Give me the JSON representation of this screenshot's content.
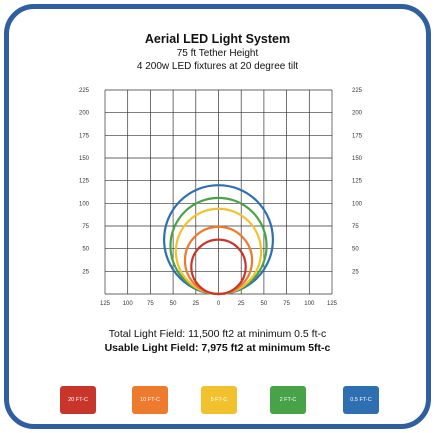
{
  "header": {
    "title": "Aerial LED Light System",
    "subtitle_height": "75 ft Tether Height",
    "subtitle_fixtures": "4 200w LED fixtures at 20 degree tilt"
  },
  "chart_data": {
    "type": "diagram",
    "grid": true,
    "x_ticks": [
      "125",
      "100",
      "75",
      "50",
      "25",
      "0",
      "25",
      "50",
      "75",
      "100",
      "125"
    ],
    "y_ticks": [
      "225",
      "200",
      "175",
      "150",
      "125",
      "100",
      "75",
      "50",
      "25"
    ],
    "x_range": [
      -125,
      125
    ],
    "y_range": [
      0,
      225
    ],
    "contours": [
      {
        "label": "0.5 FT-C",
        "color": "#2e6fb2",
        "radius": 60,
        "center_y": 60
      },
      {
        "label": "2 FT-C",
        "color": "#48a248",
        "radius": 53,
        "center_y": 53
      },
      {
        "label": "5 FT-C",
        "color": "#f2c12e",
        "radius": 47,
        "center_y": 47
      },
      {
        "label": "10 FT-C",
        "color": "#ee7a2e",
        "radius": 37,
        "center_y": 37
      },
      {
        "label": "20 FT-C",
        "color": "#c8362b",
        "radius": 30,
        "center_y": 30
      }
    ]
  },
  "summary": {
    "total": "Total Light Field: 11,500 ft2 at minimum 0.5 ft-c",
    "usable": "Usable Light Field: 7,975 ft2 at minimum 5ft-c"
  },
  "legend": [
    {
      "label": "20 FT-C",
      "color": "#c8362b"
    },
    {
      "label": "10 FT-C",
      "color": "#ee7a2e"
    },
    {
      "label": "5 FT-C",
      "color": "#f2c12e"
    },
    {
      "label": "2 FT-C",
      "color": "#48a248"
    },
    {
      "label": "0.5 FT-C",
      "color": "#2e6fb2"
    }
  ]
}
